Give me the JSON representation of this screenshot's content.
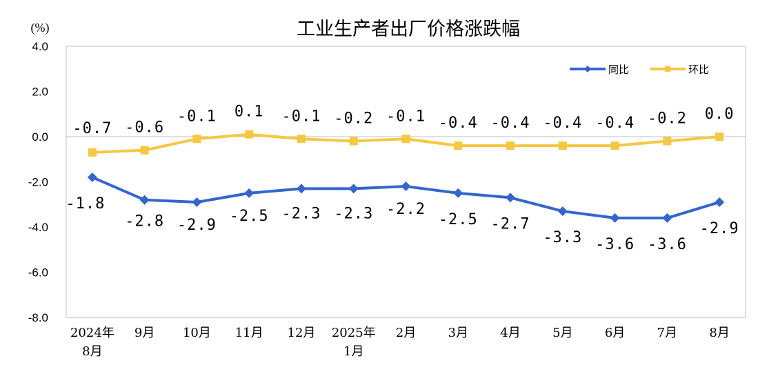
{
  "chart_data": {
    "type": "line",
    "title": "工业生产者出厂价格涨跌幅",
    "ylabel": "(%)",
    "ylim": [
      -8.0,
      4.0
    ],
    "yticks": [
      "4.0",
      "2.0",
      "0.0",
      "-2.0",
      "-4.0",
      "-6.0",
      "-8.0"
    ],
    "ytick_values": [
      4,
      2,
      0,
      -2,
      -4,
      -6,
      -8
    ],
    "categories": [
      [
        "2024年",
        "8月"
      ],
      [
        "9月"
      ],
      [
        "10月"
      ],
      [
        "11月"
      ],
      [
        "12月"
      ],
      [
        "2025年",
        "1月"
      ],
      [
        "2月"
      ],
      [
        "3月"
      ],
      [
        "4月"
      ],
      [
        "5月"
      ],
      [
        "6月"
      ],
      [
        "7月"
      ],
      [
        "8月"
      ]
    ],
    "series": [
      {
        "name": "同比",
        "color": "#3366cc",
        "marker": "diamond",
        "values": [
          -1.8,
          -2.8,
          -2.9,
          -2.5,
          -2.3,
          -2.3,
          -2.2,
          -2.5,
          -2.7,
          -3.3,
          -3.6,
          -3.6,
          -2.9
        ],
        "labels": [
          "-1.8",
          "-2.8",
          "-2.9",
          "-2.5",
          "-2.3",
          "-2.3",
          "-2.2",
          "-2.5",
          "-2.7",
          "-3.3",
          "-3.6",
          "-3.6",
          "-2.9"
        ]
      },
      {
        "name": "环比",
        "color": "#f5c842",
        "marker": "square",
        "values": [
          -0.7,
          -0.6,
          -0.1,
          0.1,
          -0.1,
          -0.2,
          -0.1,
          -0.4,
          -0.4,
          -0.4,
          -0.4,
          -0.2,
          0.0
        ],
        "labels": [
          "-0.7",
          "-0.6",
          "-0.1",
          "0.1",
          "-0.1",
          "-0.2",
          "-0.1",
          "-0.4",
          "-0.4",
          "-0.4",
          "-0.4",
          "-0.2",
          "0.0"
        ]
      }
    ],
    "legend": "top-right",
    "grid": false
  }
}
